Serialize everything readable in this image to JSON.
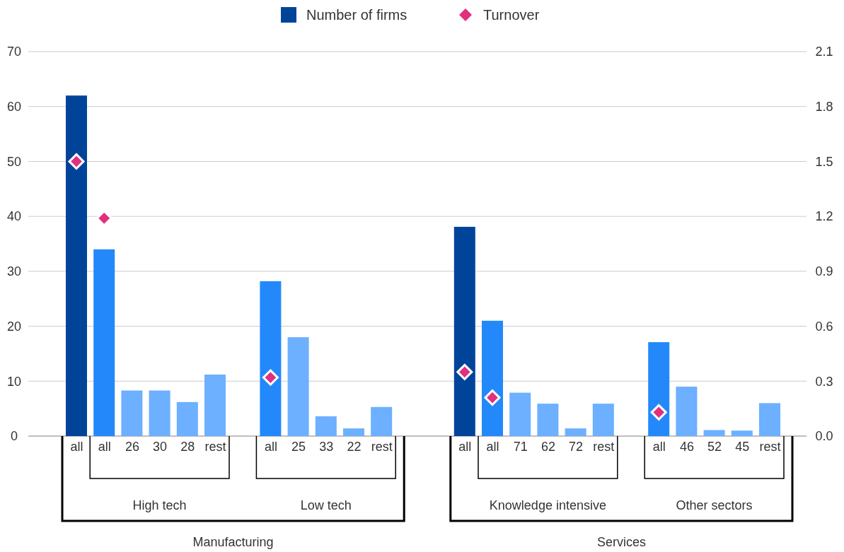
{
  "chart_data": {
    "type": "bar",
    "categories": [
      "all",
      "all",
      "26",
      "30",
      "28",
      "rest",
      null,
      "all",
      "25",
      "33",
      "22",
      "rest",
      null,
      null,
      "all",
      "all",
      "71",
      "62",
      "72",
      "rest",
      null,
      "all",
      "46",
      "52",
      "45",
      "rest"
    ],
    "series": [
      {
        "name": "Number of firms",
        "color": "#00449a",
        "colors": [
          "#00449a",
          "#2389fa",
          "#6cb0ff",
          "#6cb0ff",
          "#6cb0ff",
          "#6cb0ff",
          null,
          "#2389fa",
          "#6cb0ff",
          "#6cb0ff",
          "#6cb0ff",
          "#6cb0ff",
          null,
          null,
          "#00449a",
          "#2389fa",
          "#6cb0ff",
          "#6cb0ff",
          "#6cb0ff",
          "#6cb0ff",
          null,
          "#2389fa",
          "#6cb0ff",
          "#6cb0ff",
          "#6cb0ff",
          "#6cb0ff"
        ],
        "values": [
          62,
          34,
          8.3,
          8.3,
          6.2,
          11.2,
          null,
          28.2,
          18,
          3.6,
          1.4,
          5.3,
          null,
          null,
          38.1,
          21,
          7.9,
          5.9,
          1.4,
          5.9,
          null,
          17.1,
          9,
          1.1,
          1,
          6
        ]
      },
      {
        "name": "Turnover",
        "type": "scatter",
        "axis": "y2",
        "color": "#e0307f",
        "marker": "diamond",
        "values": [
          1.5,
          1.19,
          null,
          null,
          null,
          null,
          null,
          0.32,
          null,
          null,
          null,
          null,
          null,
          null,
          0.35,
          0.21,
          null,
          null,
          null,
          null,
          null,
          0.13,
          null,
          null,
          null,
          null
        ]
      }
    ],
    "ylim": [
      0,
      70
    ],
    "yticks": [
      0,
      10,
      20,
      30,
      40,
      50,
      60,
      70
    ],
    "y2lim": [
      0,
      2.1
    ],
    "y2ticks": [
      {
        "value": 0,
        "label": "0.0"
      },
      {
        "value": 0.3,
        "label": "0.3"
      },
      {
        "value": 0.6,
        "label": "0.6"
      },
      {
        "value": 0.9,
        "label": "0.9"
      },
      {
        "value": 1.2,
        "label": "1.2"
      },
      {
        "value": 1.5,
        "label": "1.5"
      },
      {
        "value": 1.8,
        "label": "1.8"
      },
      {
        "value": 2.1,
        "label": "2.1"
      }
    ],
    "grid": "y",
    "legend": "top",
    "annotations": [
      "High tech",
      "Low tech",
      "Knowledge intensive",
      "Other sectors",
      "Manufacturing",
      "Services"
    ]
  }
}
